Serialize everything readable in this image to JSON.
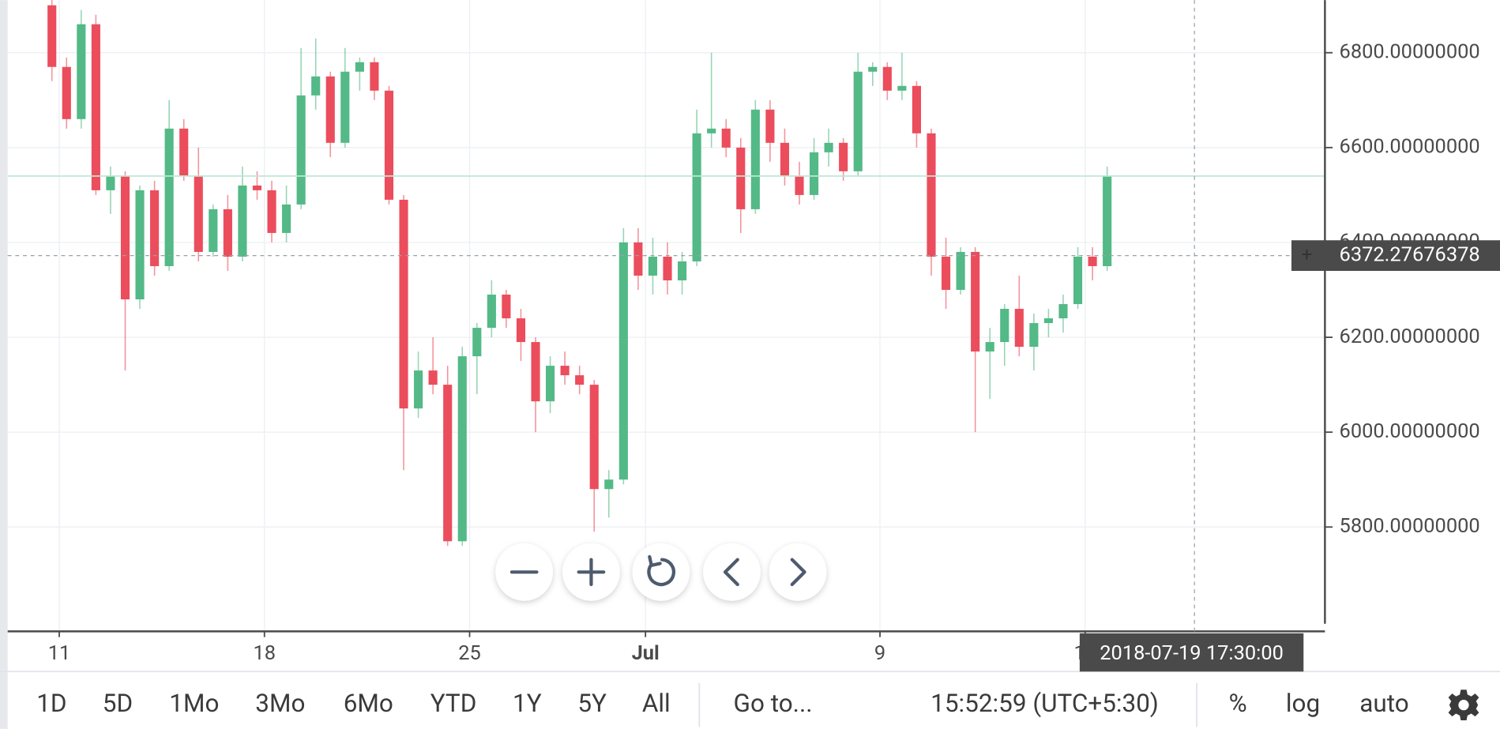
{
  "chart_data": {
    "type": "candlestick",
    "x": [
      10.75,
      11.25,
      11.75,
      12.25,
      12.75,
      13.25,
      13.75,
      14.25,
      14.75,
      15.25,
      15.75,
      16.25,
      16.75,
      17.25,
      17.75,
      18.25,
      18.75,
      19.25,
      19.75,
      20.25,
      20.75,
      21.25,
      21.75,
      22.25,
      22.75,
      23.25,
      23.75,
      24.25,
      24.75,
      25.25,
      25.75,
      26.25,
      26.75,
      27.25,
      27.75,
      28.25,
      28.75,
      29.25,
      29.75,
      30.25,
      30.75,
      31.25,
      31.75,
      32.25,
      32.75,
      33.25,
      33.75,
      34.25,
      34.75,
      35.25,
      35.75,
      36.25,
      36.75,
      37.25,
      37.75,
      38.25,
      38.75,
      39.25,
      39.75,
      40.25,
      40.75,
      41.25,
      41.75,
      42.25,
      42.75,
      43.25,
      43.75,
      44.25,
      44.75,
      45.25,
      45.75,
      46.25,
      46.75
    ],
    "open": [
      6900,
      6770,
      6660,
      6860,
      6510,
      6540,
      6280,
      6510,
      6350,
      6640,
      6540,
      6380,
      6470,
      6370,
      6520,
      6510,
      6420,
      6480,
      6710,
      6750,
      6610,
      6760,
      6780,
      6720,
      6490,
      6050,
      6130,
      6100,
      5770,
      6160,
      6220,
      6290,
      6240,
      6190,
      6065,
      6140,
      6120,
      6100,
      5880,
      5900,
      6400,
      6330,
      6370,
      6320,
      6360,
      6630,
      6640,
      6600,
      6470,
      6680,
      6610,
      6540,
      6500,
      6590,
      6610,
      6550,
      6760,
      6770,
      6720,
      6730,
      6630,
      6370,
      6300,
      6380,
      6170,
      6190,
      6260,
      6180,
      6230,
      6240,
      6270,
      6370,
      6350
    ],
    "high": [
      6920,
      6790,
      6890,
      6880,
      6560,
      6550,
      6520,
      6530,
      6700,
      6660,
      6600,
      6480,
      6500,
      6560,
      6550,
      6530,
      6520,
      6810,
      6830,
      6760,
      6810,
      6790,
      6790,
      6730,
      6500,
      6170,
      6200,
      6140,
      6180,
      6230,
      6320,
      6300,
      6260,
      6200,
      6160,
      6170,
      6140,
      6110,
      5920,
      6430,
      6430,
      6410,
      6400,
      6380,
      6680,
      6800,
      6660,
      6620,
      6700,
      6700,
      6640,
      6570,
      6620,
      6640,
      6620,
      6800,
      6780,
      6780,
      6800,
      6740,
      6640,
      6410,
      6390,
      6390,
      6220,
      6270,
      6330,
      6250,
      6260,
      6290,
      6390,
      6390,
      6560
    ],
    "low": [
      6740,
      6640,
      6640,
      6500,
      6460,
      6130,
      6260,
      6330,
      6340,
      6530,
      6360,
      6370,
      6340,
      6360,
      6490,
      6400,
      6400,
      6470,
      6680,
      6580,
      6600,
      6720,
      6700,
      6480,
      5920,
      6030,
      6080,
      5760,
      5760,
      6080,
      6200,
      6220,
      6150,
      6000,
      6040,
      6100,
      6080,
      5790,
      5820,
      5890,
      6300,
      6290,
      6290,
      6290,
      6350,
      6600,
      6580,
      6420,
      6460,
      6570,
      6520,
      6480,
      6490,
      6560,
      6530,
      6540,
      6730,
      6700,
      6700,
      6600,
      6330,
      6260,
      6290,
      6000,
      6070,
      6140,
      6160,
      6130,
      6200,
      6210,
      6260,
      6320,
      6340
    ],
    "close": [
      6770,
      6660,
      6860,
      6510,
      6540,
      6280,
      6510,
      6350,
      6640,
      6540,
      6380,
      6470,
      6370,
      6520,
      6510,
      6420,
      6480,
      6710,
      6750,
      6610,
      6760,
      6780,
      6720,
      6490,
      6050,
      6130,
      6100,
      5770,
      6160,
      6220,
      6290,
      6240,
      6190,
      6065,
      6140,
      6120,
      6100,
      5880,
      5900,
      6400,
      6330,
      6370,
      6320,
      6360,
      6630,
      6640,
      6600,
      6470,
      6680,
      6610,
      6540,
      6500,
      6590,
      6610,
      6550,
      6760,
      6770,
      6720,
      6730,
      6630,
      6370,
      6300,
      6380,
      6170,
      6190,
      6260,
      6180,
      6230,
      6240,
      6270,
      6370,
      6350,
      6540
    ],
    "up_color": "#53b987",
    "down_color": "#eb4d5c",
    "xlim": [
      9.24,
      54.18
    ],
    "xticks": [
      11,
      18,
      25,
      {
        "value": 31,
        "label": "Jul"
      },
      {
        "value": 39,
        "label": "9"
      },
      {
        "value": 46,
        "label": "16"
      }
    ],
    "ylim": [
      5580,
      6911
    ],
    "yticks": [
      {
        "value": 5800,
        "label": "5800.00000000"
      },
      {
        "value": 6000,
        "label": "6000.00000000"
      },
      {
        "value": 6200,
        "label": "6200.00000000"
      },
      {
        "value": 6400,
        "label": "6400.00000000"
      },
      {
        "value": 6600,
        "label": "6600.00000000"
      },
      {
        "value": 6800,
        "label": "6800.00000000"
      }
    ],
    "grid": true,
    "crosshair": {
      "price": {
        "value": 6372.27676378,
        "label": "6372.27676378"
      },
      "time": "2018-07-19 17:30:00"
    }
  },
  "toolbar": {
    "ranges": [
      "1D",
      "5D",
      "1Mo",
      "3Mo",
      "6Mo",
      "YTD",
      "1Y",
      "5Y",
      "All"
    ],
    "goto": "Go to...",
    "clock": "15:52:59 (UTC+5:30)",
    "options": [
      "%",
      "log",
      "auto"
    ]
  }
}
